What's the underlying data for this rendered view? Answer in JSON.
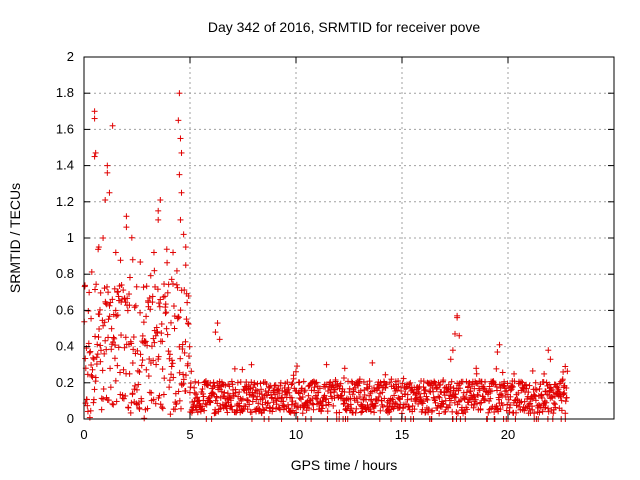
{
  "chart_data": {
    "type": "scatter",
    "title": "Day 342 of 2016, SRMTID for receiver pove",
    "xlabel": "GPS time / hours",
    "ylabel": "SRMTID / TECUs",
    "xlim": [
      0,
      25
    ],
    "ylim": [
      0,
      2
    ],
    "xticks": [
      0,
      5,
      10,
      15,
      20
    ],
    "yticks": [
      0,
      0.2,
      0.4,
      0.6,
      0.8,
      1,
      1.2,
      1.4,
      1.6,
      1.8,
      2
    ],
    "xtick_labels": [
      "0",
      "5",
      "10",
      "15",
      "20"
    ],
    "ytick_labels": [
      "0",
      "0.2",
      "0.4",
      "0.6",
      "0.8",
      "1",
      "1.2",
      "1.4",
      "1.6",
      "1.8",
      "2"
    ],
    "grid": true,
    "marker": "plus",
    "color": "#e00000",
    "series": [
      {
        "name": "SRMTID",
        "segments": [
          {
            "x_start": 0.0,
            "x_end": 5.0,
            "y_base": 0.4,
            "y_spread": 0.35
          },
          {
            "x_start": 5.0,
            "x_end": 9.8,
            "y_base": 0.12,
            "y_spread": 0.1
          },
          {
            "x_start": 9.8,
            "x_end": 22.8,
            "y_base": 0.12,
            "y_spread": 0.1
          }
        ],
        "highlights": [
          {
            "x": 0.5,
            "y": 1.7
          },
          {
            "x": 0.5,
            "y": 1.66
          },
          {
            "x": 0.55,
            "y": 1.47
          },
          {
            "x": 0.5,
            "y": 1.45
          },
          {
            "x": 1.1,
            "y": 1.4
          },
          {
            "x": 1.1,
            "y": 1.36
          },
          {
            "x": 1.35,
            "y": 1.62
          },
          {
            "x": 1.2,
            "y": 1.25
          },
          {
            "x": 1.0,
            "y": 1.21
          },
          {
            "x": 2.0,
            "y": 1.12
          },
          {
            "x": 2.0,
            "y": 1.06
          },
          {
            "x": 3.6,
            "y": 1.21
          },
          {
            "x": 3.5,
            "y": 1.15
          },
          {
            "x": 3.5,
            "y": 1.1
          },
          {
            "x": 4.5,
            "y": 1.8
          },
          {
            "x": 4.45,
            "y": 1.65
          },
          {
            "x": 4.55,
            "y": 1.55
          },
          {
            "x": 4.6,
            "y": 1.47
          },
          {
            "x": 4.5,
            "y": 1.35
          },
          {
            "x": 4.6,
            "y": 1.25
          },
          {
            "x": 4.55,
            "y": 1.1
          },
          {
            "x": 4.7,
            "y": 1.02
          },
          {
            "x": 4.8,
            "y": 0.95
          },
          {
            "x": 4.8,
            "y": 0.85
          },
          {
            "x": 0.9,
            "y": 1.0
          },
          {
            "x": 0.7,
            "y": 0.95
          },
          {
            "x": 1.5,
            "y": 0.92
          },
          {
            "x": 2.3,
            "y": 0.88
          },
          {
            "x": 3.3,
            "y": 0.92
          },
          {
            "x": 4.2,
            "y": 0.92
          },
          {
            "x": 6.3,
            "y": 0.53
          },
          {
            "x": 6.2,
            "y": 0.48
          },
          {
            "x": 6.4,
            "y": 0.44
          },
          {
            "x": 7.9,
            "y": 0.3
          },
          {
            "x": 12.3,
            "y": 0.28
          },
          {
            "x": 13.6,
            "y": 0.31
          },
          {
            "x": 17.6,
            "y": 0.57
          },
          {
            "x": 17.6,
            "y": 0.56
          },
          {
            "x": 17.5,
            "y": 0.47
          },
          {
            "x": 17.7,
            "y": 0.46
          },
          {
            "x": 17.4,
            "y": 0.38
          },
          {
            "x": 17.3,
            "y": 0.33
          },
          {
            "x": 19.6,
            "y": 0.41
          },
          {
            "x": 19.5,
            "y": 0.37
          },
          {
            "x": 21.9,
            "y": 0.38
          },
          {
            "x": 22.0,
            "y": 0.33
          },
          {
            "x": 22.7,
            "y": 0.29
          },
          {
            "x": 22.6,
            "y": 0.26
          },
          {
            "x": 18.5,
            "y": 0.28
          },
          {
            "x": 16.4,
            "y": 0.2
          },
          {
            "x": 14.5,
            "y": 0.22
          }
        ]
      }
    ]
  }
}
